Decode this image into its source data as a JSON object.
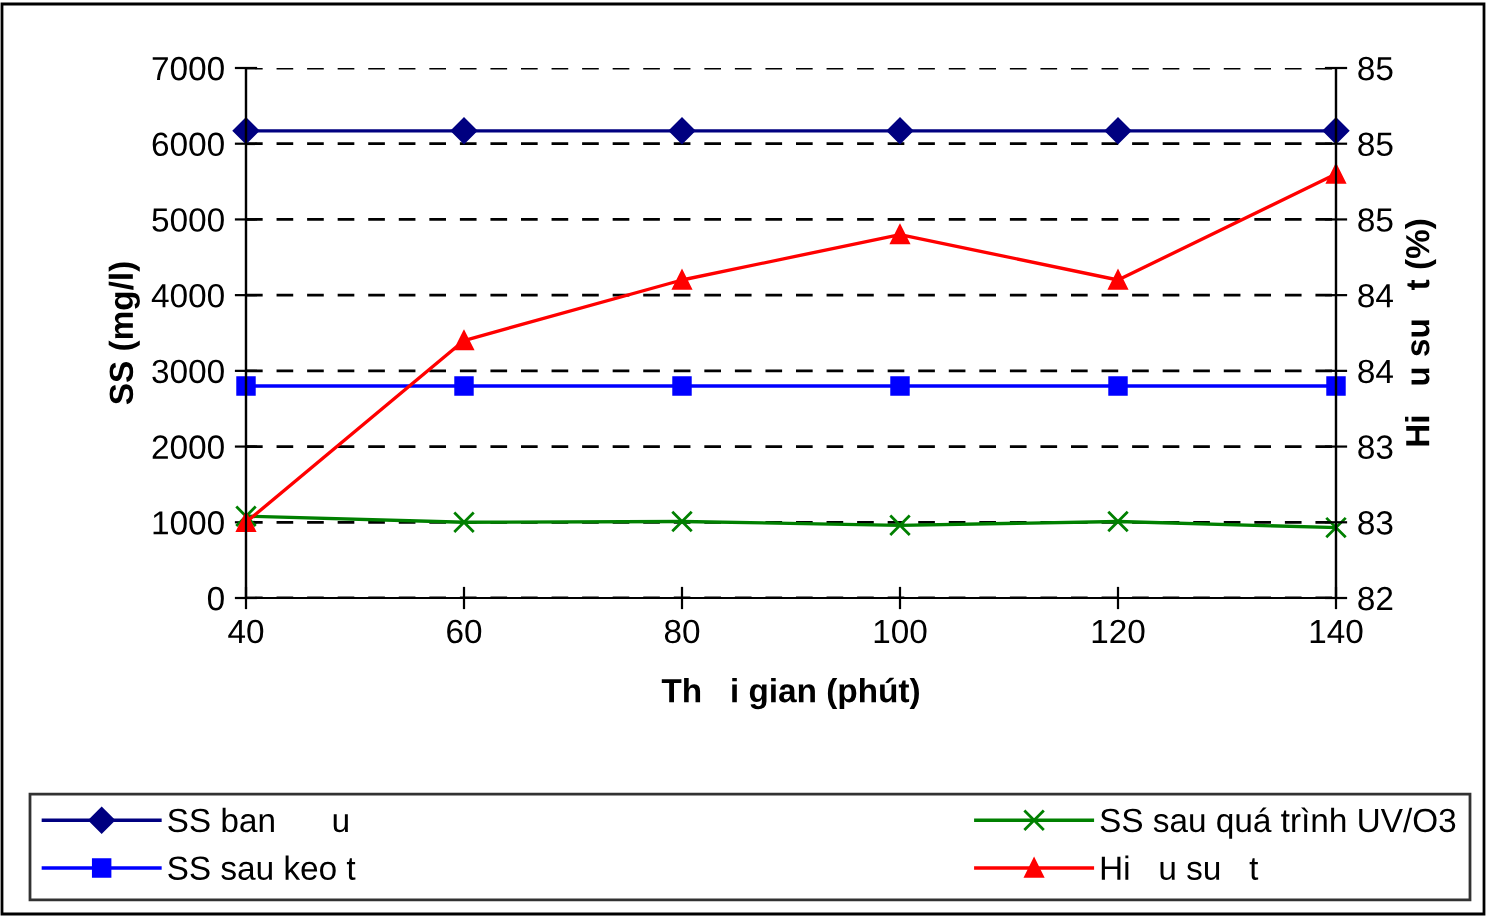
{
  "chart_data": {
    "type": "line",
    "xlabel": "Th   i gian (phút)",
    "ylabel": "SS (mg/l)",
    "y2label": "Hi   u su   t (%)",
    "x": [
      40,
      60,
      80,
      100,
      120,
      140
    ],
    "xlim": [
      40,
      140
    ],
    "xticks": [
      40,
      60,
      80,
      100,
      120,
      140
    ],
    "ylim": [
      0,
      7000
    ],
    "yticks": [
      0,
      1000,
      2000,
      3000,
      4000,
      5000,
      6000,
      7000
    ],
    "y2lim": [
      82,
      85.5
    ],
    "y2ticks": [
      {
        "value": 82,
        "label": "82"
      },
      {
        "value": 82.5,
        "label": "83"
      },
      {
        "value": 83,
        "label": "83"
      },
      {
        "value": 83.5,
        "label": "84"
      },
      {
        "value": 84,
        "label": "84"
      },
      {
        "value": 84.5,
        "label": "85"
      },
      {
        "value": 85,
        "label": "85"
      },
      {
        "value": 85.5,
        "label": "85"
      }
    ],
    "grid": "y",
    "legend": "bottom",
    "line_style": "solid",
    "series": [
      {
        "name": "SS ban      u",
        "color": "#000080",
        "marker": "diamond",
        "values": [
          6170,
          6170,
          6170,
          6170,
          6170,
          6170
        ]
      },
      {
        "name": "SS sau keo t",
        "color": "#0000ff",
        "marker": "square",
        "values": [
          2800,
          2800,
          2800,
          2800,
          2800,
          2800
        ]
      },
      {
        "name": "SS sau quá trình UV/O3",
        "color": "#008000",
        "marker": "cross",
        "values": [
          1080,
          1000,
          1010,
          960,
          1010,
          930
        ]
      },
      {
        "name": "Hi   u su   t",
        "color": "#ff0000",
        "marker": "triangle",
        "axis": "y2",
        "values": [
          82.5,
          83.7,
          84.1,
          84.4,
          84.1,
          84.8
        ]
      }
    ]
  }
}
